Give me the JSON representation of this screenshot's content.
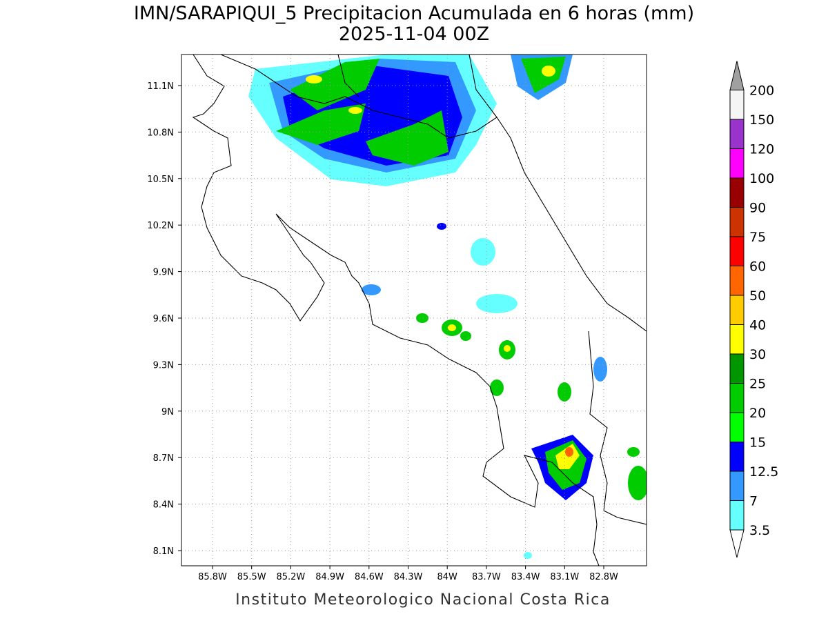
{
  "title": "IMN/SARAPIQUI_5 Precipitacion Acumulada en 6 horas (mm)",
  "subtitle": "2025-11-04 00Z",
  "map": {
    "lon_labels": [
      "85.8W",
      "85.5W",
      "85.2W",
      "84.9W",
      "84.6W",
      "84.3W",
      "84W",
      "83.7W",
      "83.4W",
      "83.1W",
      "82.8W"
    ],
    "lat_labels": [
      "11.1N",
      "10.8N",
      "10.5N",
      "10.2N",
      "9.9N",
      "9.6N",
      "9.3N",
      "9N",
      "8.7N",
      "8.4N",
      "8.1N"
    ]
  },
  "colorbar": {
    "labels": [
      "3.5",
      "7",
      "12.5",
      "15",
      "20",
      "25",
      "30",
      "40",
      "50",
      "60",
      "75",
      "90",
      "100",
      "120",
      "150",
      "200"
    ],
    "colors": [
      "#66ffff",
      "#3399ff",
      "#0000ff",
      "#00ff00",
      "#00cc00",
      "#009600",
      "#ffff00",
      "#ffcc00",
      "#ff6600",
      "#ff0000",
      "#cc3300",
      "#990000",
      "#ff00ff",
      "#9933cc",
      "#f5f5f5"
    ],
    "over_color": "#a0a0a0",
    "under_color": "#ffffff"
  },
  "footer": "Instituto Meteorologico Nacional Costa Rica"
}
